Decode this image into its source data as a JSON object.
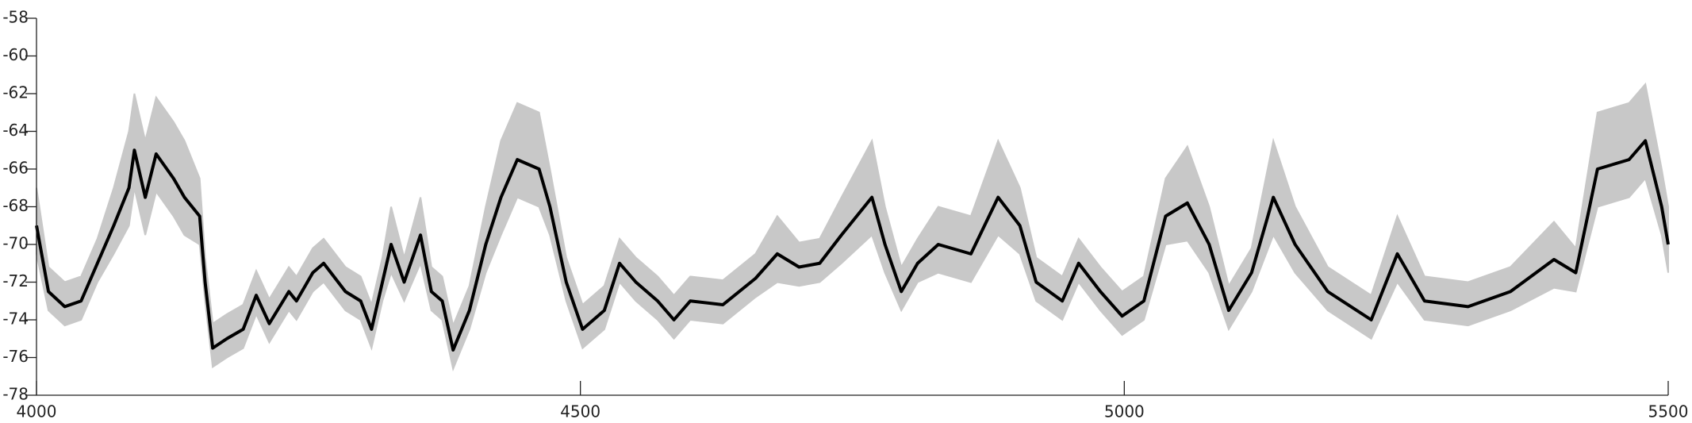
{
  "chart_data": {
    "type": "line",
    "x": [
      4000,
      4011,
      4026,
      4041,
      4056,
      4071,
      4085,
      4090,
      4100,
      4110,
      4126,
      4136,
      4150,
      4155,
      4162,
      4175,
      4190,
      4202,
      4214,
      4232,
      4239,
      4254,
      4264,
      4284,
      4298,
      4308,
      4318,
      4326,
      4338,
      4353,
      4363,
      4373,
      4383,
      4398,
      4413,
      4427,
      4442,
      4462,
      4472,
      4487,
      4502,
      4522,
      4536,
      4551,
      4571,
      4586,
      4601,
      4631,
      4661,
      4681,
      4701,
      4720,
      4740,
      4768,
      4780,
      4795,
      4810,
      4829,
      4859,
      4884,
      4904,
      4919,
      4943,
      4958,
      4978,
      4998,
      5018,
      5038,
      5058,
      5078,
      5096,
      5117,
      5137,
      5157,
      5187,
      5227,
      5251,
      5276,
      5316,
      5355,
      5395,
      5415,
      5435,
      5464,
      5479,
      5494,
      5500
    ],
    "series": [
      {
        "color": "#000000",
        "values": [
          -69,
          -72.5,
          -73.3,
          -73,
          -71,
          -69,
          -67,
          -65,
          -67.5,
          -65.2,
          -66.5,
          -67.5,
          -68.5,
          -72,
          -75.5,
          -75,
          -74.5,
          -72.7,
          -74.2,
          -72.5,
          -73,
          -71.5,
          -71,
          -72.5,
          -73,
          -74.5,
          -72,
          -70,
          -72,
          -69.5,
          -72.5,
          -73,
          -75.6,
          -73.5,
          -70,
          -67.5,
          -65.5,
          -66,
          -68,
          -72,
          -74.5,
          -73.5,
          -71,
          -72,
          -73,
          -74,
          -73,
          -73.2,
          -71.8,
          -70.5,
          -71.2,
          -71,
          -69.5,
          -67.5,
          -70,
          -72.5,
          -71,
          -70,
          -70.5,
          -67.5,
          -69,
          -72,
          -73,
          -71,
          -72.5,
          -73.8,
          -73,
          -68.5,
          -67.8,
          -70,
          -73.5,
          -71.5,
          -67.5,
          -70,
          -72.5,
          -74,
          -70.5,
          -73,
          -73.3,
          -72.5,
          -70.8,
          -71.5,
          -66,
          -65.5,
          -64.5,
          -68,
          -70
        ]
      }
    ],
    "band": {
      "color": "#c8c8c8",
      "upper": [
        -67,
        -71.2,
        -72,
        -71.7,
        -69.7,
        -67,
        -64,
        -62,
        -64.5,
        -62.2,
        -63.5,
        -64.5,
        -66.5,
        -70.7,
        -74.2,
        -73.7,
        -73.2,
        -71.4,
        -72.9,
        -71.2,
        -71.7,
        -70.2,
        -69.7,
        -71.2,
        -71.7,
        -73.2,
        -70.7,
        -68,
        -70.7,
        -67.5,
        -71.2,
        -71.7,
        -74.3,
        -72.2,
        -68,
        -64.5,
        -62.5,
        -63,
        -66,
        -70.7,
        -73.2,
        -72.2,
        -69.7,
        -70.7,
        -71.7,
        -72.7,
        -71.7,
        -71.9,
        -70.5,
        -68.5,
        -69.9,
        -69.7,
        -67.5,
        -64.5,
        -68,
        -71.2,
        -69.7,
        -68,
        -68.5,
        -64.5,
        -67,
        -70.7,
        -71.7,
        -69.7,
        -71.2,
        -72.5,
        -71.7,
        -66.5,
        -64.8,
        -68,
        -72.2,
        -70.2,
        -64.5,
        -68,
        -71.2,
        -72.7,
        -68.5,
        -71.7,
        -72,
        -71.2,
        -68.8,
        -70.2,
        -63,
        -62.5,
        -61.5,
        -66,
        -68
      ],
      "lower": [
        -70.5,
        -73.5,
        -74.3,
        -74,
        -72,
        -70.5,
        -69,
        -67,
        -69.5,
        -67.2,
        -68.5,
        -69.5,
        -70,
        -73,
        -76.5,
        -76,
        -75.5,
        -73.7,
        -75.2,
        -73.5,
        -74,
        -72.5,
        -72,
        -73.5,
        -74,
        -75.5,
        -73,
        -71.5,
        -73,
        -71,
        -73.5,
        -74,
        -76.6,
        -74.5,
        -71.5,
        -69.5,
        -67.5,
        -68,
        -69.5,
        -73,
        -75.5,
        -74.5,
        -72,
        -73,
        -74,
        -75,
        -74,
        -74.2,
        -72.8,
        -72,
        -72.2,
        -72,
        -71,
        -69.5,
        -71.5,
        -73.5,
        -72,
        -71.5,
        -72,
        -69.5,
        -70.5,
        -73,
        -74,
        -72,
        -73.5,
        -74.8,
        -74,
        -70,
        -69.8,
        -71.5,
        -74.5,
        -72.5,
        -69.5,
        -71.5,
        -73.5,
        -75,
        -72,
        -74,
        -74.3,
        -73.5,
        -72.3,
        -72.5,
        -68,
        -67.5,
        -66.5,
        -69.5,
        -71.5
      ]
    },
    "xlim": [
      4000,
      5500
    ],
    "xticks": [
      4000,
      4500,
      5000,
      5500
    ],
    "ylim": [
      -78,
      -58
    ],
    "yticks": [
      -78,
      -76,
      -74,
      -72,
      -70,
      -68,
      -66,
      -64,
      -62,
      -60,
      -58
    ]
  }
}
